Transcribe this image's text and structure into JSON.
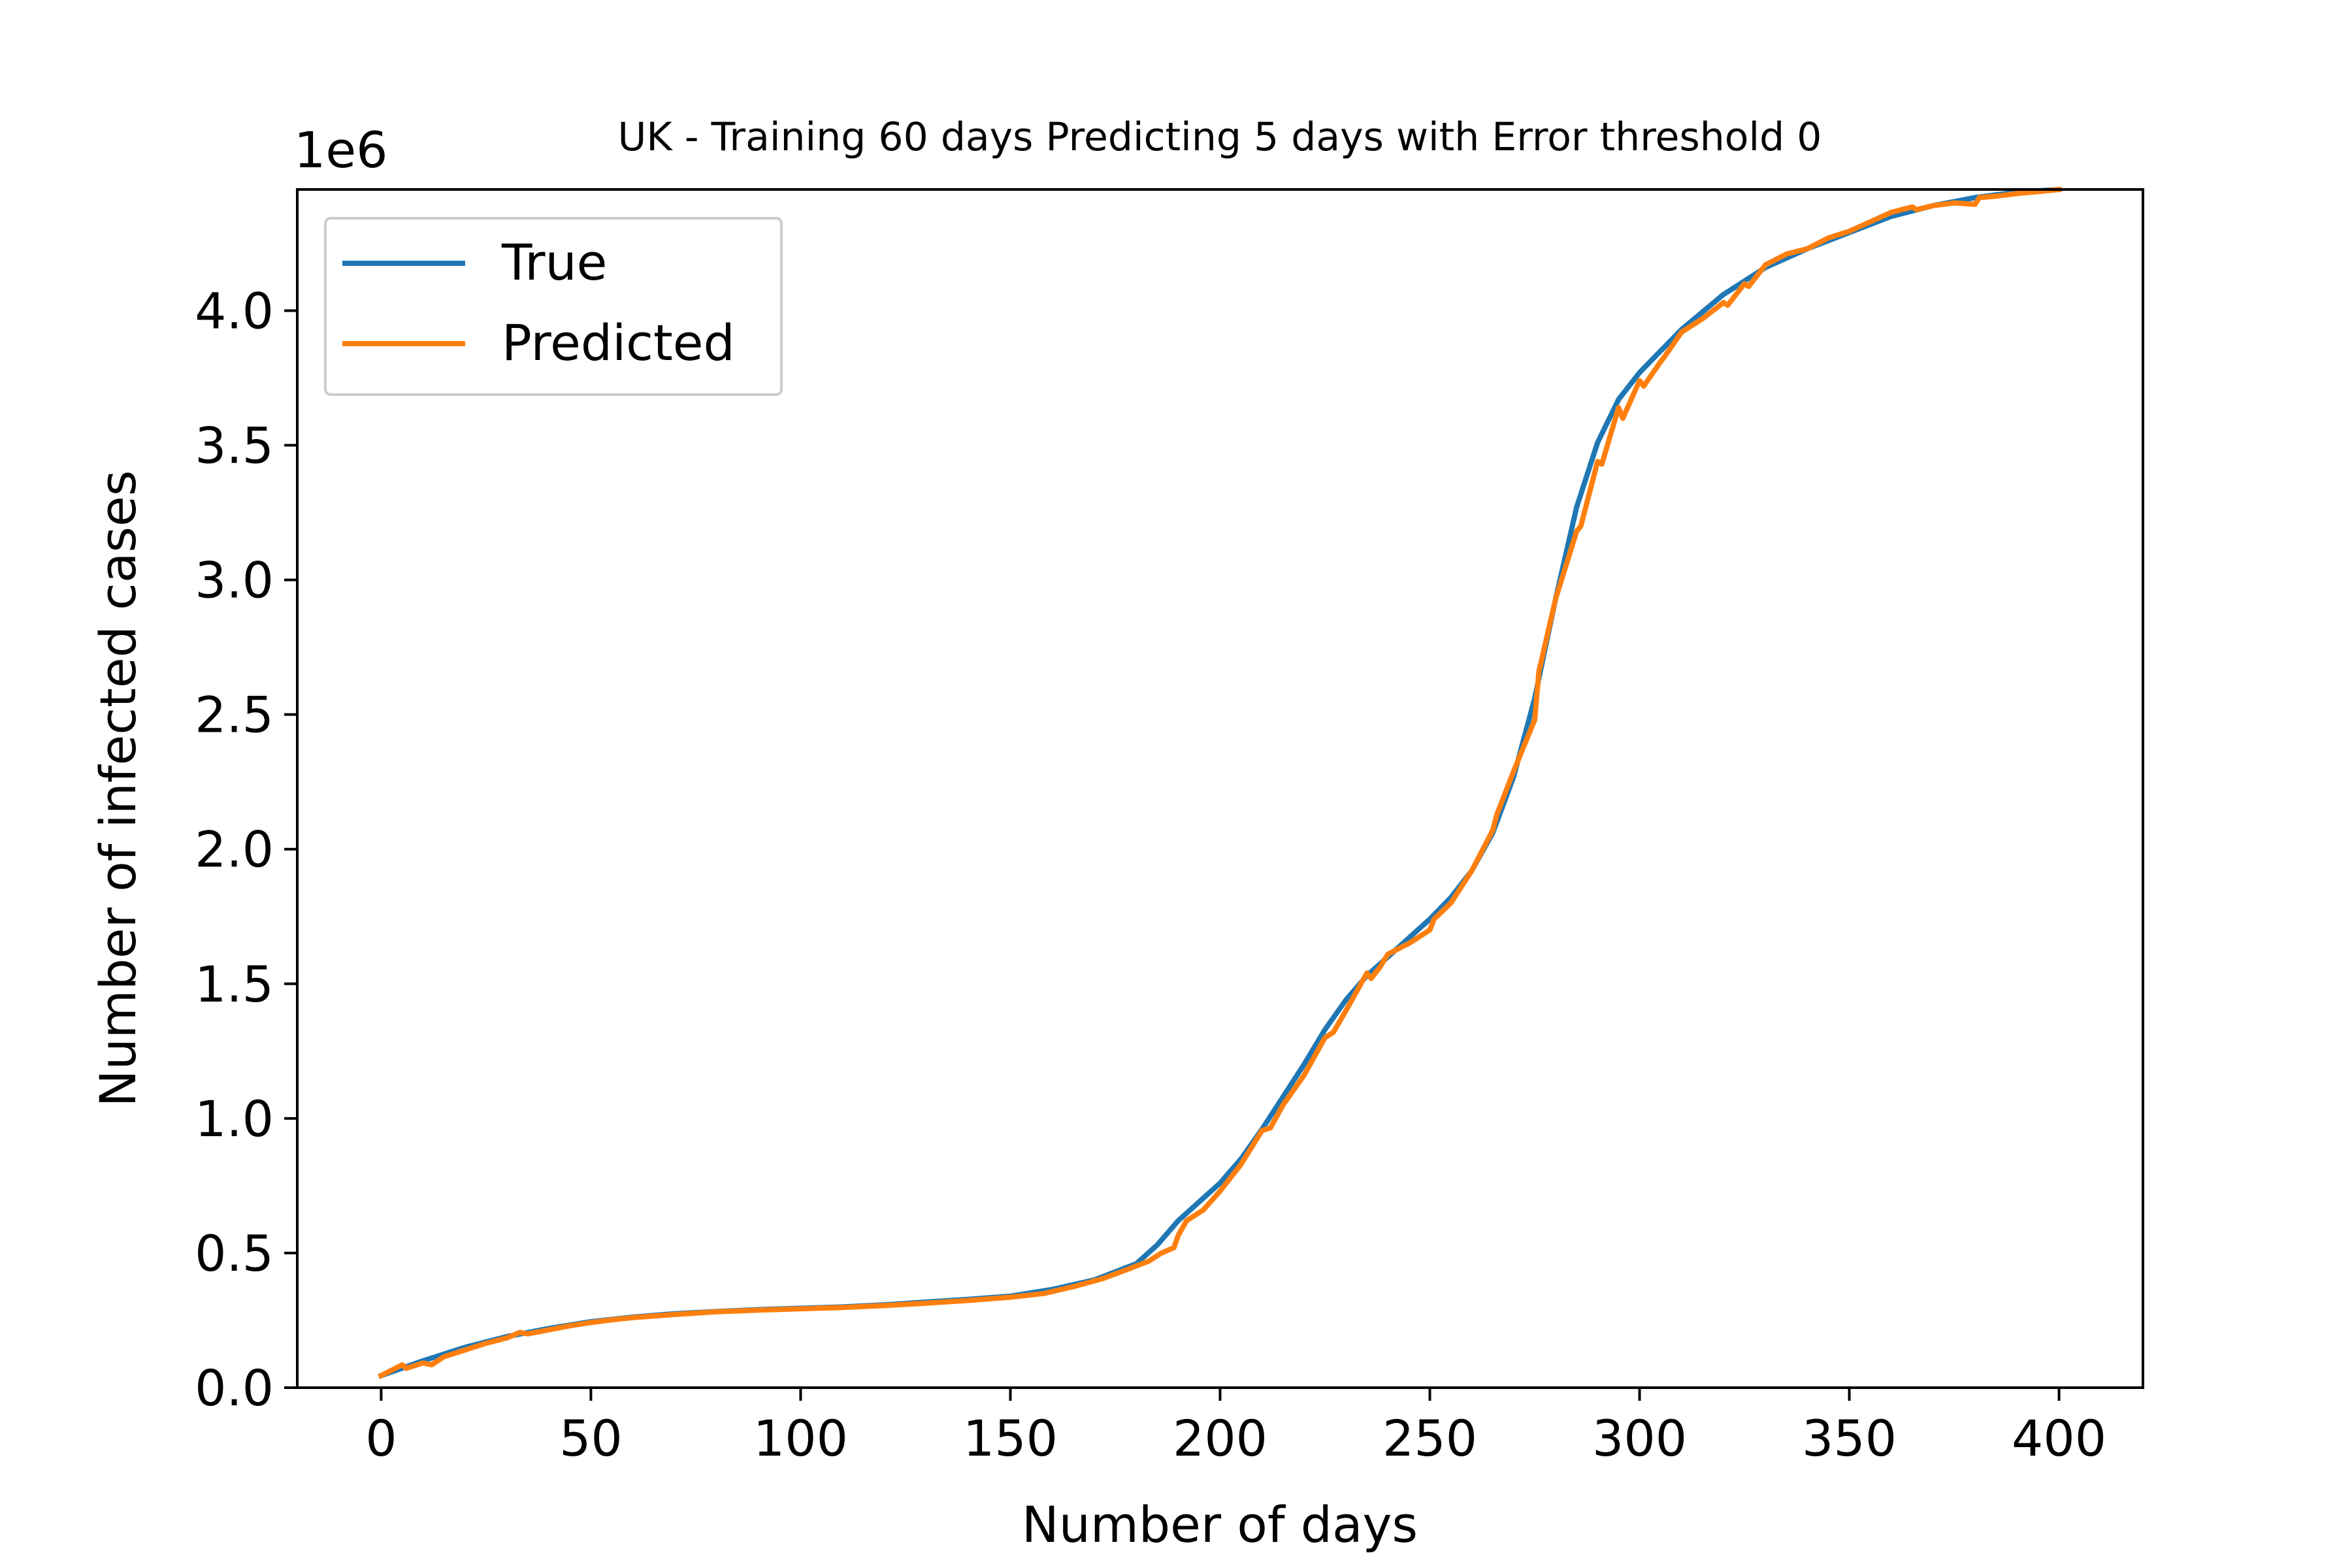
{
  "chart_data": {
    "type": "line",
    "title": "UK - Training 60 days Predicting 5 days with Error threshold 0",
    "xlabel": "Number of days",
    "ylabel": "Number of infected cases",
    "y_offset_label": "1e6",
    "xlim": [
      -20,
      420
    ],
    "ylim": [
      0,
      4450000
    ],
    "x_ticks": [
      0,
      50,
      100,
      150,
      200,
      250,
      300,
      350,
      400
    ],
    "x_tick_labels": [
      "0",
      "50",
      "100",
      "150",
      "200",
      "250",
      "300",
      "350",
      "400"
    ],
    "y_ticks": [
      0,
      500000,
      1000000,
      1500000,
      2000000,
      2500000,
      3000000,
      3500000,
      4000000
    ],
    "y_tick_labels": [
      "0.0",
      "0.5",
      "1.0",
      "1.5",
      "2.0",
      "2.5",
      "3.0",
      "3.5",
      "4.0"
    ],
    "grid": false,
    "legend_position": "top-left",
    "series": [
      {
        "name": "True",
        "color": "#1f77b4",
        "x": [
          0,
          10,
          20,
          30,
          40,
          50,
          60,
          70,
          80,
          90,
          100,
          110,
          120,
          130,
          140,
          150,
          160,
          170,
          180,
          185,
          190,
          195,
          200,
          205,
          210,
          215,
          220,
          225,
          230,
          235,
          240,
          245,
          250,
          255,
          260,
          265,
          270,
          275,
          280,
          285,
          290,
          295,
          300,
          305,
          310,
          320,
          330,
          340,
          350,
          360,
          370,
          380,
          390,
          400
        ],
        "y": [
          45000,
          100000,
          150000,
          190000,
          220000,
          245000,
          262000,
          275000,
          283000,
          290000,
          295000,
          300000,
          308000,
          318000,
          328000,
          340000,
          365000,
          400000,
          460000,
          530000,
          620000,
          690000,
          760000,
          850000,
          960000,
          1080000,
          1200000,
          1330000,
          1440000,
          1530000,
          1600000,
          1670000,
          1740000,
          1820000,
          1920000,
          2060000,
          2270000,
          2560000,
          2930000,
          3270000,
          3510000,
          3670000,
          3770000,
          3850000,
          3930000,
          4060000,
          4160000,
          4230000,
          4290000,
          4350000,
          4390000,
          4420000,
          4440000,
          4450000
        ]
      },
      {
        "name": "Predicted",
        "color": "#ff7f0e",
        "x": [
          0,
          5,
          6,
          10,
          12,
          15,
          20,
          25,
          30,
          33,
          35,
          40,
          45,
          50,
          55,
          60,
          70,
          80,
          90,
          100,
          110,
          120,
          130,
          140,
          150,
          158,
          165,
          172,
          178,
          183,
          186,
          189,
          190,
          192,
          196,
          200,
          205,
          210,
          212,
          215,
          220,
          225,
          227,
          230,
          235,
          236,
          238,
          240,
          245,
          250,
          251,
          255,
          260,
          265,
          266,
          270,
          275,
          276,
          280,
          285,
          286,
          290,
          291,
          295,
          296,
          300,
          301,
          305,
          306,
          310,
          315,
          320,
          321,
          325,
          326,
          330,
          335,
          340,
          345,
          350,
          355,
          360,
          365,
          366,
          370,
          375,
          380,
          381,
          385,
          390,
          395,
          400
        ],
        "y": [
          45000,
          85000,
          72000,
          92000,
          85000,
          115000,
          140000,
          165000,
          185000,
          205000,
          200000,
          215000,
          230000,
          242000,
          252000,
          260000,
          272000,
          282000,
          288000,
          293000,
          298000,
          305000,
          314000,
          324000,
          336000,
          350000,
          375000,
          405000,
          440000,
          470000,
          500000,
          520000,
          565000,
          620000,
          660000,
          730000,
          830000,
          955000,
          965000,
          1050000,
          1160000,
          1300000,
          1320000,
          1400000,
          1540000,
          1520000,
          1560000,
          1610000,
          1650000,
          1700000,
          1740000,
          1800000,
          1920000,
          2070000,
          2130000,
          2290000,
          2480000,
          2660000,
          2930000,
          3180000,
          3200000,
          3440000,
          3430000,
          3640000,
          3600000,
          3740000,
          3720000,
          3810000,
          3830000,
          3920000,
          3970000,
          4030000,
          4020000,
          4100000,
          4090000,
          4170000,
          4210000,
          4230000,
          4270000,
          4295000,
          4330000,
          4365000,
          4385000,
          4375000,
          4390000,
          4400000,
          4395000,
          4420000,
          4425000,
          4435000,
          4442000,
          4450000
        ]
      }
    ]
  }
}
